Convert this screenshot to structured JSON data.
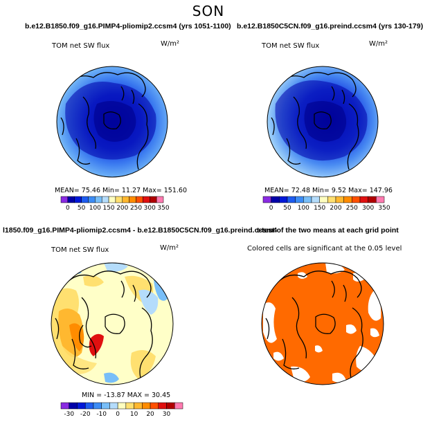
{
  "title": "SON",
  "colors": {
    "abs_scale": [
      "#8a2be2",
      "#0000a8",
      "#0018d8",
      "#1e5cf0",
      "#3c8cf5",
      "#78bef8",
      "#b4dcfb",
      "#ffffc0",
      "#ffe070",
      "#ffb830",
      "#ff8c00",
      "#ff5000",
      "#e01010",
      "#b00000",
      "#ff7ab0"
    ],
    "diff_scale": [
      "#8a2be2",
      "#0000a8",
      "#0018d8",
      "#1e5cf0",
      "#3c8cf5",
      "#78bef8",
      "#b4dcfb",
      "#ffffc0",
      "#ffe070",
      "#ffb830",
      "#ff8c00",
      "#ff5000",
      "#e01010",
      "#b00000",
      "#ff7ab0"
    ],
    "signif": "#ff6a00"
  },
  "chart_data": [
    {
      "type": "heatmap",
      "panel": "top-left",
      "title": "b.e12.B1850.f09_g16.PIMP4-pliomip2.ccsm4 (yrs 1051-1100)",
      "label": "TOM net SW flux",
      "units": "W/m²",
      "mean_label": "MEAN=",
      "mean": "75.46",
      "min_label": "Min=",
      "min": "11.27",
      "max_label": "Max=",
      "max": "151.60",
      "colorbar": {
        "ticks": [
          "0",
          "50",
          "100",
          "150",
          "200",
          "250",
          "300",
          "350"
        ]
      }
    },
    {
      "type": "heatmap",
      "panel": "top-right",
      "title": "b.e12.B1850C5CN.f09_g16.preind.ccsm4 (yrs 130-179)",
      "label": "TOM net SW flux",
      "units": "W/m²",
      "mean_label": "MEAN=",
      "mean": "72.48",
      "min_label": "Min=",
      "min": "9.52",
      "max_label": "Max=",
      "max": "147.96",
      "colorbar": {
        "ticks": [
          "0",
          "50",
          "100",
          "150",
          "200",
          "250",
          "300",
          "350"
        ]
      }
    },
    {
      "type": "heatmap",
      "panel": "bottom-left",
      "title": "l1850.f09_g16.PIMP4-pliomip2.ccsm4 - b.e12.B1850C5CN.f09_g16.preind.ccsm4",
      "label": "TOM net SW flux",
      "units": "W/m²",
      "min_label": "MIN =",
      "min": "-13.87",
      "max_label": "MAX =",
      "max": "30.45",
      "colorbar": {
        "ticks": [
          "-30",
          "-20",
          "-10",
          "0",
          "10",
          "20",
          "30"
        ]
      }
    },
    {
      "type": "heatmap",
      "panel": "bottom-right",
      "title": "t-test of the two means at each grid point",
      "label": "Colored cells are significant at the 0.05 level"
    }
  ]
}
